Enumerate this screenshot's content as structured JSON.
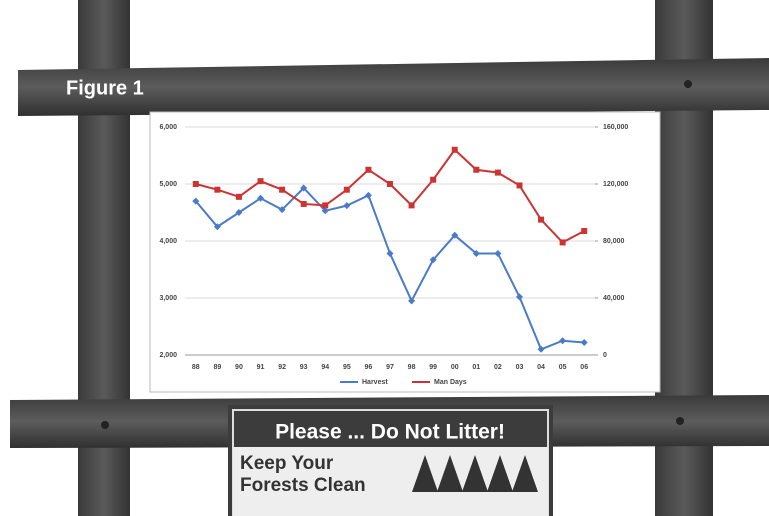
{
  "figure_label": "Figure 1",
  "chart_data": {
    "type": "line",
    "categories": [
      "88",
      "89",
      "90",
      "91",
      "92",
      "93",
      "94",
      "95",
      "96",
      "97",
      "98",
      "99",
      "00",
      "01",
      "02",
      "03",
      "04",
      "05",
      "06"
    ],
    "series": [
      {
        "name": "Harvest",
        "color": "#4a7bc8",
        "values": [
          4700,
          4250,
          4500,
          4750,
          4550,
          4930,
          4530,
          4620,
          4800,
          3780,
          2950,
          3670,
          4100,
          3780,
          3780,
          3020,
          2100,
          2250,
          2220
        ]
      },
      {
        "name": "Man Days",
        "color": "#cc3333",
        "axis": "y2",
        "values": [
          120000,
          116000,
          111000,
          122000,
          116000,
          106000,
          105000,
          116000,
          130000,
          120000,
          105000,
          123000,
          144000,
          130000,
          128000,
          119000,
          95000,
          79000,
          87000
        ]
      }
    ],
    "ylim": [
      2000,
      6000
    ],
    "yticks": [
      {
        "value": 2000,
        "label": "2,000"
      },
      {
        "value": 3000,
        "label": "3,000"
      },
      {
        "value": 4000,
        "label": "4,000"
      },
      {
        "value": 5000,
        "label": "5,000"
      },
      {
        "value": 6000,
        "label": "6,000"
      }
    ],
    "y2lim": [
      0,
      160000
    ],
    "y2ticks": [
      0,
      {
        "value": 40000,
        "label": "40,000"
      },
      {
        "value": 80000,
        "label": "80,000"
      },
      {
        "value": 120000,
        "label": "120,000"
      },
      {
        "value": 160000,
        "label": "160,000"
      }
    ],
    "grid": true
  },
  "sign": {
    "headline": "Please ... Do Not Litter!",
    "line1": "Keep Your",
    "line2": "Forests Clean"
  }
}
